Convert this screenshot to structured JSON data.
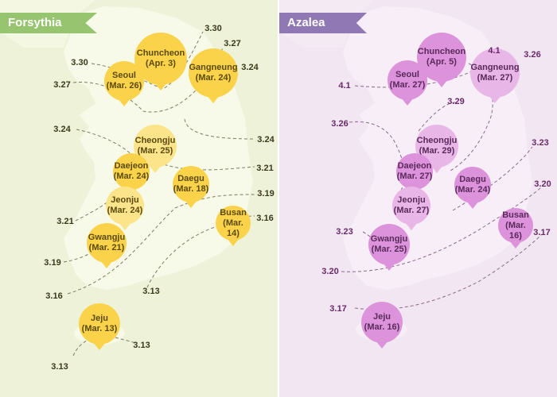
{
  "forsythia": {
    "title": "Forsythia",
    "colors": {
      "bubble": "#fbd34a",
      "bubble_light": "#fbe48a",
      "line": "#8a8a70"
    },
    "cities": [
      {
        "name": "Chuncheon",
        "date": "(Apr. 3)"
      },
      {
        "name": "Seoul",
        "date": "(Mar. 26)"
      },
      {
        "name": "Gangneung",
        "date": "(Mar. 24)"
      },
      {
        "name": "Cheongju",
        "date": "(Mar. 25)"
      },
      {
        "name": "Daejeon",
        "date": "(Mar. 24)"
      },
      {
        "name": "Daegu",
        "date": "(Mar. 18)"
      },
      {
        "name": "Jeonju",
        "date": "(Mar. 24)"
      },
      {
        "name": "Busan",
        "date": "(Mar. 14)"
      },
      {
        "name": "Gwangju",
        "date": "(Mar. 21)"
      },
      {
        "name": "Jeju",
        "date": "(Mar. 13)"
      }
    ],
    "isolines": [
      "3.30",
      "3.30",
      "3.27",
      "3.27",
      "3.24",
      "3.24",
      "3.24",
      "3.21",
      "3.21",
      "3.19",
      "3.19",
      "3.16",
      "3.16",
      "3.13",
      "3.13"
    ]
  },
  "azalea": {
    "title": "Azalea",
    "colors": {
      "bubble": "#dc93dc",
      "bubble_light": "#e8b7e8",
      "line": "#8a6a8a"
    },
    "cities": [
      {
        "name": "Chuncheon",
        "date": "(Apr. 5)"
      },
      {
        "name": "Seoul",
        "date": "(Mar. 27)"
      },
      {
        "name": "Gangneung",
        "date": "(Mar. 27)"
      },
      {
        "name": "Cheongju",
        "date": "(Mar. 29)"
      },
      {
        "name": "Daejeon",
        "date": "(Mar. 27)"
      },
      {
        "name": "Daegu",
        "date": "(Mar. 24)"
      },
      {
        "name": "Jeonju",
        "date": "(Mar. 27)"
      },
      {
        "name": "Busan",
        "date": "(Mar. 16)"
      },
      {
        "name": "Gwangju",
        "date": "(Mar. 25)"
      },
      {
        "name": "Jeju",
        "date": "(Mar. 16)"
      }
    ],
    "isolines": [
      "4.1",
      "4.1",
      "3.26",
      "3.29",
      "3.26",
      "3.23",
      "3.23",
      "3.20",
      "3.20",
      "3.17",
      "3.17"
    ]
  }
}
